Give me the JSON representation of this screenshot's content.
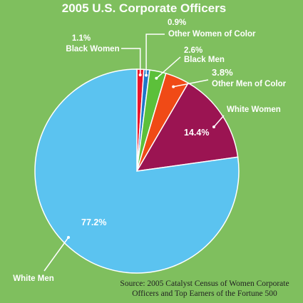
{
  "chart_data": {
    "type": "pie",
    "title": "2005 U.S. Corporate Officers",
    "slices": [
      {
        "label": "Black Women",
        "value": 1.1,
        "value_label": "1.1%",
        "color": "#e8152a"
      },
      {
        "label": "Other Women of Color",
        "value": 0.9,
        "value_label": "0.9%",
        "color": "#1f77c8"
      },
      {
        "label": "Black Men",
        "value": 2.6,
        "value_label": "2.6%",
        "color": "#5cc03a"
      },
      {
        "label": "Other Men of Color",
        "value": 3.8,
        "value_label": "3.8%",
        "color": "#f04a16"
      },
      {
        "label": "White Women",
        "value": 14.4,
        "value_label": "14.4%",
        "color": "#9b1452"
      },
      {
        "label": "White Men",
        "value": 77.2,
        "value_label": "77.2%",
        "color": "#5bc3f0"
      }
    ]
  },
  "source": {
    "line1": "Source: 2005 Catalyst Census of Women Corporate",
    "line2": "Officers and Top Earners of the Fortune 500"
  },
  "colors": {
    "background": "#7fbf5e",
    "text": "#ffffff",
    "slice_border": "#ffffff"
  }
}
